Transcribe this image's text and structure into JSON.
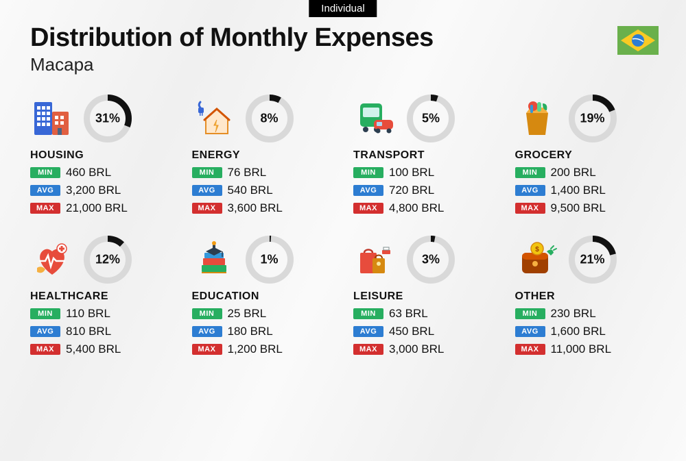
{
  "badge": "Individual",
  "title": "Distribution of Monthly Expenses",
  "subtitle": "Macapa",
  "flag": {
    "bg": "#6ab04c",
    "diamond": "#f9ca24",
    "circle": "#2d7dd2"
  },
  "ring": {
    "size": 70,
    "stroke_width": 9,
    "track_color": "#d9d9d9",
    "arc_color": "#111111"
  },
  "labels": {
    "min": "MIN",
    "avg": "AVG",
    "max": "MAX"
  },
  "currency": "BRL",
  "tag_colors": {
    "min": "#27ae60",
    "avg": "#2d7dd2",
    "max": "#d32f2f"
  },
  "categories": [
    {
      "key": "housing",
      "name": "HOUSING",
      "percent": 31,
      "min": "460",
      "avg": "3,200",
      "max": "21,000"
    },
    {
      "key": "energy",
      "name": "ENERGY",
      "percent": 8,
      "min": "76",
      "avg": "540",
      "max": "3,600"
    },
    {
      "key": "transport",
      "name": "TRANSPORT",
      "percent": 5,
      "min": "100",
      "avg": "720",
      "max": "4,800"
    },
    {
      "key": "grocery",
      "name": "GROCERY",
      "percent": 19,
      "min": "200",
      "avg": "1,400",
      "max": "9,500"
    },
    {
      "key": "healthcare",
      "name": "HEALTHCARE",
      "percent": 12,
      "min": "110",
      "avg": "810",
      "max": "5,400"
    },
    {
      "key": "education",
      "name": "EDUCATION",
      "percent": 1,
      "min": "25",
      "avg": "180",
      "max": "1,200"
    },
    {
      "key": "leisure",
      "name": "LEISURE",
      "percent": 3,
      "min": "63",
      "avg": "450",
      "max": "3,000"
    },
    {
      "key": "other",
      "name": "OTHER",
      "percent": 21,
      "min": "230",
      "avg": "1,600",
      "max": "11,000"
    }
  ]
}
